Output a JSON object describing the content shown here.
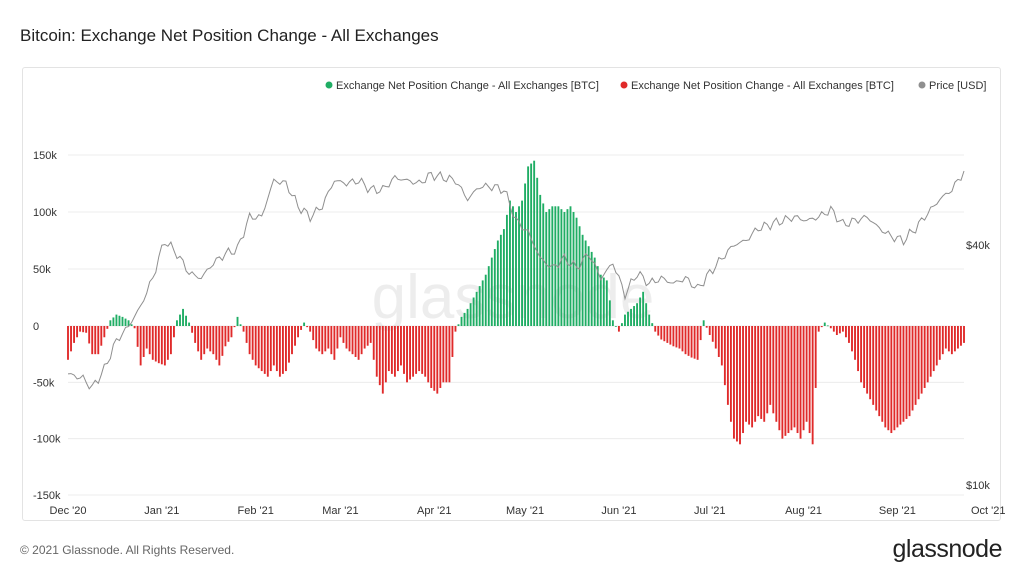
{
  "header": {
    "title": "Bitcoin: Exchange Net Position Change - All Exchanges"
  },
  "footer": {
    "copyright": "© 2021 Glassnode. All Rights Reserved.",
    "brand": "glassnode"
  },
  "watermark": "glassnode",
  "colors": {
    "positive": "#1fad64",
    "negative": "#e02a2a",
    "price": "#8f8f8f"
  },
  "chart_data": {
    "type": "bar",
    "title": "Bitcoin: Exchange Net Position Change - All Exchanges",
    "legend_position": "top-right",
    "legend": [
      {
        "name": "Exchange Net Position Change - All Exchanges [BTC]",
        "color": "#1fad64"
      },
      {
        "name": "Exchange Net Position Change - All Exchanges [BTC]",
        "color": "#e02a2a"
      },
      {
        "name": "Price [USD]",
        "color": "#8f8f8f"
      }
    ],
    "x_ticks": [
      "Dec '20",
      "Jan '21",
      "Feb '21",
      "Mar '21",
      "Apr '21",
      "May '21",
      "Jun '21",
      "Jul '21",
      "Aug '21",
      "Sep '21",
      "Oct '21"
    ],
    "y_left": {
      "ticks": [
        "150k",
        "100k",
        "50k",
        "0",
        "-50k",
        "-100k",
        "-150k"
      ],
      "range": [
        -150000,
        150000
      ]
    },
    "y_right": {
      "ticks": [
        "$40k",
        "$10k"
      ],
      "scale": "log"
    },
    "start_date": "2020-12-01",
    "series": [
      {
        "name": "Exchange Net Position Change - All Exchanges [BTC]",
        "unit": "BTC",
        "anchors": [
          [
            0,
            -30000
          ],
          [
            2,
            -15000
          ],
          [
            4,
            -5000
          ],
          [
            6,
            -6000
          ],
          [
            8,
            -25000
          ],
          [
            10,
            -25000
          ],
          [
            12,
            -10000
          ],
          [
            14,
            5000
          ],
          [
            16,
            10000
          ],
          [
            18,
            8000
          ],
          [
            20,
            5000
          ],
          [
            22,
            -2000
          ],
          [
            24,
            -35000
          ],
          [
            26,
            -20000
          ],
          [
            28,
            -30000
          ],
          [
            30,
            -33000
          ],
          [
            32,
            -35000
          ],
          [
            34,
            -25000
          ],
          [
            36,
            5000
          ],
          [
            38,
            15000
          ],
          [
            40,
            3000
          ],
          [
            42,
            -15000
          ],
          [
            44,
            -30000
          ],
          [
            46,
            -20000
          ],
          [
            48,
            -25000
          ],
          [
            50,
            -35000
          ],
          [
            52,
            -18000
          ],
          [
            54,
            -10000
          ],
          [
            56,
            8000
          ],
          [
            58,
            -5000
          ],
          [
            60,
            -25000
          ],
          [
            62,
            -35000
          ],
          [
            64,
            -40000
          ],
          [
            66,
            -45000
          ],
          [
            68,
            -35000
          ],
          [
            70,
            -45000
          ],
          [
            72,
            -40000
          ],
          [
            74,
            -25000
          ],
          [
            76,
            -10000
          ],
          [
            78,
            3000
          ],
          [
            80,
            -5000
          ],
          [
            82,
            -20000
          ],
          [
            84,
            -25000
          ],
          [
            86,
            -20000
          ],
          [
            88,
            -30000
          ],
          [
            90,
            -10000
          ],
          [
            92,
            -20000
          ],
          [
            94,
            -25000
          ],
          [
            96,
            -30000
          ],
          [
            98,
            -20000
          ],
          [
            100,
            -15000
          ],
          [
            102,
            -45000
          ],
          [
            104,
            -60000
          ],
          [
            106,
            -40000
          ],
          [
            108,
            -45000
          ],
          [
            110,
            -35000
          ],
          [
            112,
            -50000
          ],
          [
            114,
            -45000
          ],
          [
            116,
            -40000
          ],
          [
            118,
            -45000
          ],
          [
            120,
            -55000
          ],
          [
            122,
            -60000
          ],
          [
            124,
            -50000
          ],
          [
            126,
            -50000
          ],
          [
            128,
            -5000
          ],
          [
            130,
            8000
          ],
          [
            132,
            15000
          ],
          [
            134,
            25000
          ],
          [
            136,
            35000
          ],
          [
            138,
            45000
          ],
          [
            140,
            60000
          ],
          [
            142,
            75000
          ],
          [
            144,
            85000
          ],
          [
            146,
            110000
          ],
          [
            148,
            100000
          ],
          [
            150,
            110000
          ],
          [
            152,
            140000
          ],
          [
            154,
            145000
          ],
          [
            156,
            115000
          ],
          [
            158,
            100000
          ],
          [
            160,
            105000
          ],
          [
            162,
            105000
          ],
          [
            164,
            100000
          ],
          [
            166,
            105000
          ],
          [
            168,
            95000
          ],
          [
            170,
            80000
          ],
          [
            172,
            70000
          ],
          [
            174,
            60000
          ],
          [
            176,
            45000
          ],
          [
            178,
            40000
          ],
          [
            180,
            5000
          ],
          [
            182,
            -5000
          ],
          [
            184,
            10000
          ],
          [
            186,
            15000
          ],
          [
            188,
            20000
          ],
          [
            190,
            30000
          ],
          [
            192,
            10000
          ],
          [
            194,
            -5000
          ],
          [
            196,
            -12000
          ],
          [
            198,
            -15000
          ],
          [
            200,
            -18000
          ],
          [
            202,
            -20000
          ],
          [
            204,
            -25000
          ],
          [
            206,
            -28000
          ],
          [
            208,
            -30000
          ],
          [
            210,
            5000
          ],
          [
            212,
            -8000
          ],
          [
            214,
            -20000
          ],
          [
            216,
            -35000
          ],
          [
            218,
            -70000
          ],
          [
            220,
            -100000
          ],
          [
            222,
            -105000
          ],
          [
            224,
            -85000
          ],
          [
            226,
            -90000
          ],
          [
            228,
            -80000
          ],
          [
            230,
            -85000
          ],
          [
            232,
            -70000
          ],
          [
            234,
            -85000
          ],
          [
            236,
            -100000
          ],
          [
            238,
            -95000
          ],
          [
            240,
            -90000
          ],
          [
            242,
            -100000
          ],
          [
            244,
            -85000
          ],
          [
            246,
            -105000
          ],
          [
            248,
            -5000
          ],
          [
            250,
            3000
          ],
          [
            252,
            -2000
          ],
          [
            254,
            -8000
          ],
          [
            256,
            -5000
          ],
          [
            258,
            -15000
          ],
          [
            260,
            -30000
          ],
          [
            262,
            -50000
          ],
          [
            264,
            -60000
          ],
          [
            266,
            -70000
          ],
          [
            268,
            -80000
          ],
          [
            270,
            -90000
          ],
          [
            272,
            -95000
          ],
          [
            274,
            -90000
          ],
          [
            276,
            -85000
          ],
          [
            278,
            -80000
          ],
          [
            280,
            -70000
          ],
          [
            282,
            -60000
          ],
          [
            284,
            -50000
          ],
          [
            286,
            -40000
          ],
          [
            288,
            -30000
          ],
          [
            290,
            -20000
          ],
          [
            292,
            -25000
          ],
          [
            294,
            -20000
          ],
          [
            296,
            -15000
          ]
        ]
      },
      {
        "name": "Price [USD]",
        "unit": "USD",
        "anchors": [
          [
            0,
            19000
          ],
          [
            5,
            18500
          ],
          [
            8,
            17500
          ],
          [
            12,
            19500
          ],
          [
            16,
            23000
          ],
          [
            20,
            25000
          ],
          [
            24,
            28000
          ],
          [
            28,
            33000
          ],
          [
            32,
            41000
          ],
          [
            36,
            38000
          ],
          [
            40,
            34000
          ],
          [
            44,
            33000
          ],
          [
            48,
            36000
          ],
          [
            52,
            38000
          ],
          [
            56,
            39000
          ],
          [
            60,
            47000
          ],
          [
            64,
            47000
          ],
          [
            68,
            58000
          ],
          [
            72,
            57000
          ],
          [
            76,
            50000
          ],
          [
            80,
            47000
          ],
          [
            84,
            50000
          ],
          [
            88,
            58000
          ],
          [
            92,
            57000
          ],
          [
            96,
            58000
          ],
          [
            100,
            55000
          ],
          [
            104,
            55000
          ],
          [
            108,
            59000
          ],
          [
            112,
            58000
          ],
          [
            116,
            57000
          ],
          [
            120,
            60000
          ],
          [
            124,
            59000
          ],
          [
            128,
            58000
          ],
          [
            132,
            52000
          ],
          [
            136,
            56000
          ],
          [
            140,
            56000
          ],
          [
            144,
            55000
          ],
          [
            148,
            46000
          ],
          [
            152,
            43000
          ],
          [
            156,
            37000
          ],
          [
            160,
            35000
          ],
          [
            164,
            37000
          ],
          [
            168,
            35000
          ],
          [
            172,
            38000
          ],
          [
            176,
            33000
          ],
          [
            180,
            36000
          ],
          [
            184,
            30000
          ],
          [
            188,
            34000
          ],
          [
            192,
            32000
          ],
          [
            196,
            33000
          ],
          [
            200,
            32000
          ],
          [
            204,
            33000
          ],
          [
            208,
            31000
          ],
          [
            212,
            34000
          ],
          [
            216,
            37000
          ],
          [
            220,
            40000
          ],
          [
            224,
            41000
          ],
          [
            228,
            44000
          ],
          [
            232,
            45000
          ],
          [
            236,
            46000
          ],
          [
            240,
            47000
          ],
          [
            244,
            46000
          ],
          [
            248,
            47000
          ],
          [
            252,
            49000
          ],
          [
            256,
            45000
          ],
          [
            260,
            46000
          ],
          [
            264,
            47000
          ],
          [
            268,
            44000
          ],
          [
            272,
            42000
          ],
          [
            276,
            41000
          ],
          [
            280,
            44000
          ],
          [
            284,
            48000
          ],
          [
            288,
            52000
          ],
          [
            292,
            55000
          ],
          [
            296,
            61000
          ]
        ]
      }
    ]
  }
}
